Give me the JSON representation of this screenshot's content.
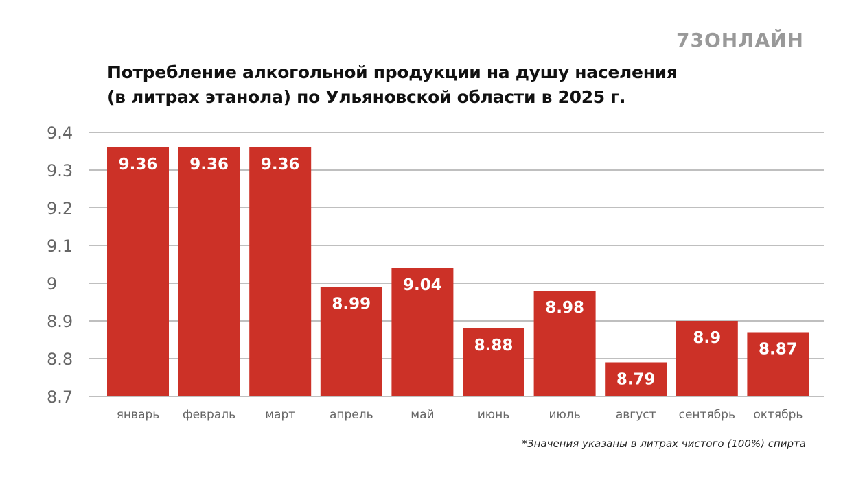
{
  "logo": "73ОНЛАЙН",
  "note": "*Значения указаны в литрах чистого (100%) спирта",
  "chart_data": {
    "type": "bar",
    "title_line1": "Потребление алкогольной продукции на душу населения",
    "title_line2": "(в литрах этанола) по Ульяновской области в 2025 г.",
    "categories": [
      "январь",
      "февраль",
      "март",
      "апрель",
      "май",
      "июнь",
      "июль",
      "август",
      "сентябрь",
      "октябрь"
    ],
    "values": [
      9.36,
      9.36,
      9.36,
      8.99,
      9.04,
      8.88,
      8.98,
      8.79,
      8.9,
      8.87
    ],
    "ylim": [
      8.7,
      9.4
    ],
    "yticks": [
      "8.7",
      "8.8",
      "8.9",
      "9",
      "9.1",
      "9.2",
      "9.3",
      "9.4"
    ],
    "grid": true,
    "bar_color": "#cc3127"
  }
}
